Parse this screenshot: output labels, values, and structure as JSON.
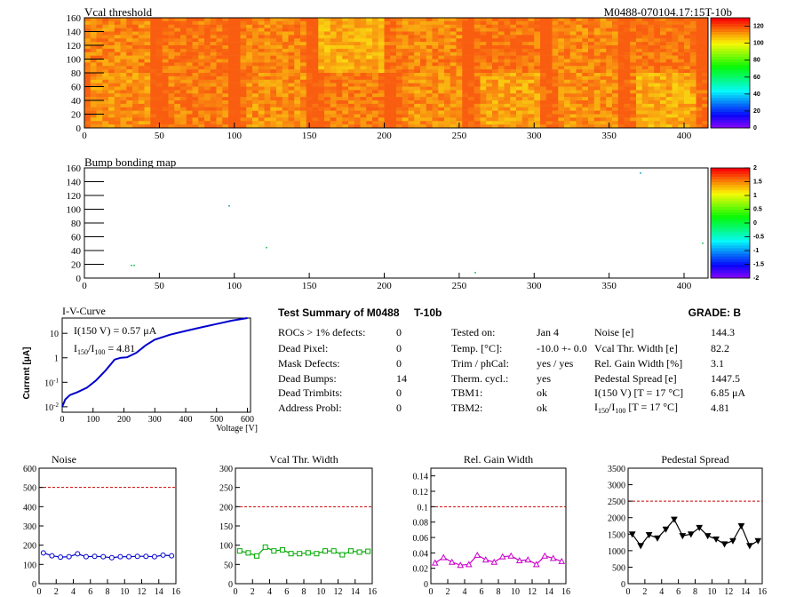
{
  "module_id": "M0488-070104.17:15T-10b",
  "vcal_map": {
    "title": "Vcal threshold",
    "x_ticks": [
      0,
      50,
      100,
      150,
      200,
      250,
      300,
      350,
      400
    ],
    "y_ticks": [
      0,
      20,
      40,
      60,
      80,
      100,
      120,
      140,
      160
    ],
    "palette_ticks": [
      0,
      20,
      40,
      60,
      80,
      100,
      120
    ],
    "xlim": [
      0,
      416
    ],
    "ylim": [
      0,
      160
    ],
    "zlim": [
      0,
      130
    ]
  },
  "bump_map": {
    "title": "Bump bonding map",
    "x_ticks": [
      0,
      50,
      100,
      150,
      200,
      250,
      300,
      350,
      400
    ],
    "y_ticks": [
      0,
      20,
      40,
      60,
      80,
      100,
      120,
      140,
      160
    ],
    "palette_ticks": [
      "2",
      "1.5",
      "1",
      "0.5",
      "0",
      "-0.5",
      "-1",
      "-1.5",
      "-2"
    ]
  },
  "iv_curve": {
    "title": "I-V-Curve",
    "annotation_line1": "I(150 V) = 0.57 μA",
    "ratio_I": "I",
    "ratio_sub1": "150",
    "ratio_slash": "/I",
    "ratio_sub2": "100",
    "ratio_value": " = 4.81",
    "ylabel": "Current [μA]",
    "xlabel": "Voltage [V]",
    "x_ticks": [
      0,
      100,
      200,
      300,
      400,
      500,
      600
    ],
    "y_tick_exps": [
      -2,
      -1,
      0,
      1
    ]
  },
  "summary": {
    "title": "Test Summary of M0488",
    "subtitle": "T-10b",
    "grade": "GRADE:  B",
    "col1_labels": [
      "ROCs > 1% defects:",
      "Dead Pixel:",
      "Mask Defects:",
      "Dead Bumps:",
      "Dead Trimbits:",
      "Address Probl:"
    ],
    "col1_values": [
      "0",
      "0",
      "0",
      "14",
      "0",
      "0"
    ],
    "col2_labels": [
      "Tested on:",
      "Temp. [°C]:",
      "Trim / phCal:",
      "Therm. cycl.:",
      "TBM1:",
      "TBM2:"
    ],
    "col2_values": [
      "Jan 4",
      "-10.0 +- 0.0",
      "yes / yes",
      "yes",
      "ok",
      "ok"
    ],
    "col3_labels": [
      "Noise [e]",
      "Vcal Thr. Width [e]",
      "Rel. Gain Width [%]",
      "Pedestal Spread [e]",
      "I(150 V) [T = 17 °C]",
      "I150/I100  [T = 17 °C]"
    ],
    "col3_values": [
      "144.3",
      "82.2",
      "3.1",
      "1447.5",
      "6.85 μA",
      "4.81"
    ]
  },
  "chart_data": [
    {
      "type": "line",
      "title": "Noise",
      "x": [
        0,
        1,
        2,
        3,
        4,
        5,
        6,
        7,
        8,
        9,
        10,
        11,
        12,
        13,
        14,
        15
      ],
      "values": [
        160,
        145,
        138,
        140,
        155,
        140,
        142,
        140,
        135,
        140,
        140,
        142,
        142,
        140,
        148,
        145
      ],
      "ylim": [
        0,
        600
      ],
      "xlim": [
        0,
        16
      ],
      "y_ticks": [
        0,
        100,
        200,
        300,
        400,
        500,
        600
      ],
      "x_ticks": [
        0,
        2,
        4,
        6,
        8,
        10,
        12,
        14,
        16
      ],
      "threshold": 500,
      "color": "#0000cc",
      "marker": "circle"
    },
    {
      "type": "line",
      "title": "Vcal Thr. Width",
      "x": [
        0,
        1,
        2,
        3,
        4,
        5,
        6,
        7,
        8,
        9,
        10,
        11,
        12,
        13,
        14,
        15
      ],
      "values": [
        85,
        80,
        72,
        95,
        85,
        88,
        78,
        78,
        80,
        78,
        85,
        85,
        75,
        85,
        82,
        84
      ],
      "ylim": [
        0,
        300
      ],
      "xlim": [
        0,
        16
      ],
      "y_ticks": [
        0,
        50,
        100,
        150,
        200,
        250,
        300
      ],
      "x_ticks": [
        0,
        2,
        4,
        6,
        8,
        10,
        12,
        14,
        16
      ],
      "threshold": 200,
      "color": "#00aa00",
      "marker": "square"
    },
    {
      "type": "line",
      "title": "Rel. Gain Width",
      "x": [
        0,
        1,
        2,
        3,
        4,
        5,
        6,
        7,
        8,
        9,
        10,
        11,
        12,
        13,
        14,
        15
      ],
      "values": [
        0.027,
        0.034,
        0.028,
        0.024,
        0.025,
        0.037,
        0.031,
        0.028,
        0.035,
        0.036,
        0.03,
        0.031,
        0.025,
        0.036,
        0.033,
        0.029
      ],
      "ylim": [
        0,
        0.15
      ],
      "xlim": [
        0,
        16
      ],
      "y_ticks": [
        0,
        0.02,
        0.04,
        0.06,
        0.08,
        0.1,
        0.12,
        0.14
      ],
      "x_ticks": [
        0,
        2,
        4,
        6,
        8,
        10,
        12,
        14,
        16
      ],
      "threshold": 0.1,
      "color": "#cc00cc",
      "marker": "triangle"
    },
    {
      "type": "line",
      "title": "Pedestal Spread",
      "x": [
        0,
        1,
        2,
        3,
        4,
        5,
        6,
        7,
        8,
        9,
        10,
        11,
        12,
        13,
        14,
        15
      ],
      "values": [
        1500,
        1150,
        1480,
        1380,
        1650,
        1950,
        1450,
        1500,
        1700,
        1450,
        1350,
        1200,
        1300,
        1750,
        1150,
        1300
      ],
      "ylim": [
        0,
        3500
      ],
      "xlim": [
        0,
        16
      ],
      "y_ticks": [
        0,
        500,
        1000,
        1500,
        2000,
        2500,
        3000,
        3500
      ],
      "x_ticks": [
        0,
        2,
        4,
        6,
        8,
        10,
        12,
        14,
        16
      ],
      "threshold": 2500,
      "color": "#000000",
      "marker": "triangle-down"
    },
    {
      "type": "line",
      "title": "I-V-Curve",
      "xlabel": "Voltage [V]",
      "ylabel": "Current [μA]",
      "x": [
        0,
        10,
        25,
        50,
        80,
        110,
        140,
        170,
        190,
        210,
        240,
        270,
        300,
        350,
        400,
        450,
        500,
        550,
        600
      ],
      "values": [
        0.01,
        0.02,
        0.03,
        0.04,
        0.06,
        0.12,
        0.3,
        0.85,
        1.0,
        1.05,
        1.6,
        3.2,
        5.5,
        8.8,
        12.5,
        17.5,
        24,
        33,
        42
      ],
      "log_y": true,
      "xlim": [
        0,
        610
      ],
      "ylim": [
        0.006,
        42
      ]
    }
  ]
}
